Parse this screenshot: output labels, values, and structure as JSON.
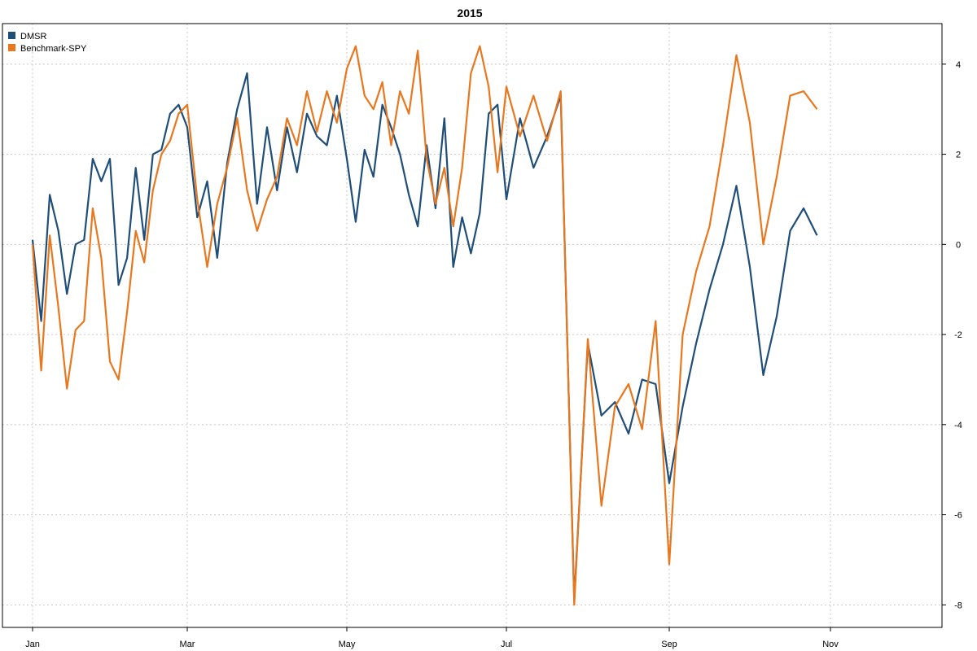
{
  "chart_data": {
    "type": "line",
    "title": "2015",
    "xlabel": "",
    "ylabel": "",
    "x_ticks": [
      "Jan",
      "Mar",
      "May",
      "Jul",
      "Sep",
      "Nov"
    ],
    "y_ticks": [
      4,
      2,
      0,
      -2,
      -4,
      -6,
      -8
    ],
    "ylim": [
      -8.5,
      4.9
    ],
    "grid": true,
    "legend_position": "top-left",
    "colors": {
      "DMSR": "#1f4e79",
      "Benchmark-SPY": "#e8771e"
    },
    "series": [
      {
        "name": "DMSR",
        "points": [
          [
            "Jan",
            0.1
          ],
          [
            "Jan",
            -1.7
          ],
          [
            "Jan",
            1.1
          ],
          [
            "Jan",
            0.3
          ],
          [
            "Jan",
            -1.1
          ],
          [
            "Jan",
            0.0
          ],
          [
            "Jan",
            0.1
          ],
          [
            "Jan",
            1.9
          ],
          [
            "Jan",
            1.4
          ],
          [
            "Jan",
            1.9
          ],
          [
            "Jan",
            -0.9
          ],
          [
            "Jan",
            -0.3
          ],
          [
            "Jan",
            1.7
          ],
          [
            "Jan",
            0.1
          ],
          [
            "Jan",
            2.0
          ],
          [
            "Jan",
            2.1
          ],
          [
            "Jan",
            2.9
          ],
          [
            "Jan",
            3.1
          ],
          [
            "Mar",
            2.6
          ],
          [
            "Mar",
            0.6
          ],
          [
            "Mar",
            1.4
          ],
          [
            "Mar",
            -0.3
          ],
          [
            "Mar",
            1.8
          ],
          [
            "Mar",
            3.0
          ],
          [
            "Mar",
            3.8
          ],
          [
            "Mar",
            0.9
          ],
          [
            "Mar",
            2.6
          ],
          [
            "Mar",
            1.2
          ],
          [
            "Mar",
            2.6
          ],
          [
            "Mar",
            1.6
          ],
          [
            "Mar",
            2.9
          ],
          [
            "Mar",
            2.4
          ],
          [
            "Mar",
            2.2
          ],
          [
            "Mar",
            3.3
          ],
          [
            "May",
            1.9
          ],
          [
            "May",
            0.5
          ],
          [
            "May",
            2.1
          ],
          [
            "May",
            1.5
          ],
          [
            "May",
            3.1
          ],
          [
            "May",
            2.6
          ],
          [
            "May",
            2.0
          ],
          [
            "May",
            1.1
          ],
          [
            "May",
            0.4
          ],
          [
            "May",
            2.2
          ],
          [
            "May",
            0.8
          ],
          [
            "May",
            2.8
          ],
          [
            "May",
            -0.5
          ],
          [
            "May",
            0.6
          ],
          [
            "May",
            -0.2
          ],
          [
            "May",
            0.7
          ],
          [
            "May",
            2.9
          ],
          [
            "May",
            3.1
          ],
          [
            "Jul",
            1.0
          ],
          [
            "Jul",
            2.8
          ],
          [
            "Jul",
            1.7
          ],
          [
            "Jul",
            2.4
          ],
          [
            "Jul",
            3.3
          ],
          [
            "Jul",
            -7.9
          ],
          [
            "Jul",
            -2.2
          ],
          [
            "Jul",
            -3.8
          ],
          [
            "Jul",
            -3.5
          ],
          [
            "Jul",
            -4.2
          ],
          [
            "Jul",
            -3.0
          ],
          [
            "Jul",
            -3.1
          ],
          [
            "Sep",
            -5.3
          ],
          [
            "Sep",
            -3.6
          ],
          [
            "Sep",
            -2.2
          ],
          [
            "Sep",
            -1.0
          ],
          [
            "Sep",
            0.0
          ],
          [
            "Sep",
            1.3
          ],
          [
            "Sep",
            -0.5
          ],
          [
            "Sep",
            -2.9
          ],
          [
            "Sep",
            -1.6
          ],
          [
            "Sep",
            0.3
          ],
          [
            "Sep",
            0.8
          ],
          [
            "Sep",
            0.2
          ]
        ]
      },
      {
        "name": "Benchmark-SPY",
        "points": [
          [
            "Jan",
            0.0
          ],
          [
            "Jan",
            -2.8
          ],
          [
            "Jan",
            0.2
          ],
          [
            "Jan",
            -1.4
          ],
          [
            "Jan",
            -3.2
          ],
          [
            "Jan",
            -1.9
          ],
          [
            "Jan",
            -1.7
          ],
          [
            "Jan",
            0.8
          ],
          [
            "Jan",
            -0.3
          ],
          [
            "Jan",
            -2.6
          ],
          [
            "Jan",
            -3.0
          ],
          [
            "Jan",
            -1.5
          ],
          [
            "Jan",
            0.3
          ],
          [
            "Jan",
            -0.4
          ],
          [
            "Jan",
            1.2
          ],
          [
            "Jan",
            2.0
          ],
          [
            "Jan",
            2.3
          ],
          [
            "Jan",
            2.9
          ],
          [
            "Mar",
            3.1
          ],
          [
            "Mar",
            1.0
          ],
          [
            "Mar",
            -0.5
          ],
          [
            "Mar",
            0.9
          ],
          [
            "Mar",
            1.7
          ],
          [
            "Mar",
            2.8
          ],
          [
            "Mar",
            1.2
          ],
          [
            "Mar",
            0.3
          ],
          [
            "Mar",
            1.0
          ],
          [
            "Mar",
            1.5
          ],
          [
            "Mar",
            2.8
          ],
          [
            "Mar",
            2.2
          ],
          [
            "Mar",
            3.4
          ],
          [
            "Mar",
            2.5
          ],
          [
            "Mar",
            3.4
          ],
          [
            "Mar",
            2.7
          ],
          [
            "May",
            3.9
          ],
          [
            "May",
            4.4
          ],
          [
            "May",
            3.3
          ],
          [
            "May",
            3.0
          ],
          [
            "May",
            3.6
          ],
          [
            "May",
            2.2
          ],
          [
            "May",
            3.4
          ],
          [
            "May",
            2.9
          ],
          [
            "May",
            4.3
          ],
          [
            "May",
            1.9
          ],
          [
            "May",
            0.9
          ],
          [
            "May",
            1.7
          ],
          [
            "May",
            0.4
          ],
          [
            "May",
            1.7
          ],
          [
            "May",
            3.8
          ],
          [
            "May",
            4.4
          ],
          [
            "May",
            3.5
          ],
          [
            "May",
            1.6
          ],
          [
            "Jul",
            3.5
          ],
          [
            "Jul",
            2.4
          ],
          [
            "Jul",
            3.3
          ],
          [
            "Jul",
            2.3
          ],
          [
            "Jul",
            3.4
          ],
          [
            "Jul",
            -8.0
          ],
          [
            "Jul",
            -2.1
          ],
          [
            "Jul",
            -5.8
          ],
          [
            "Jul",
            -3.6
          ],
          [
            "Jul",
            -3.1
          ],
          [
            "Jul",
            -4.1
          ],
          [
            "Jul",
            -1.7
          ],
          [
            "Sep",
            -7.1
          ],
          [
            "Sep",
            -2.0
          ],
          [
            "Sep",
            -0.6
          ],
          [
            "Sep",
            0.4
          ],
          [
            "Sep",
            2.2
          ],
          [
            "Sep",
            4.2
          ],
          [
            "Sep",
            2.7
          ],
          [
            "Sep",
            0.0
          ],
          [
            "Sep",
            1.5
          ],
          [
            "Sep",
            3.3
          ],
          [
            "Sep",
            3.4
          ],
          [
            "Sep",
            3.0
          ]
        ]
      }
    ]
  }
}
